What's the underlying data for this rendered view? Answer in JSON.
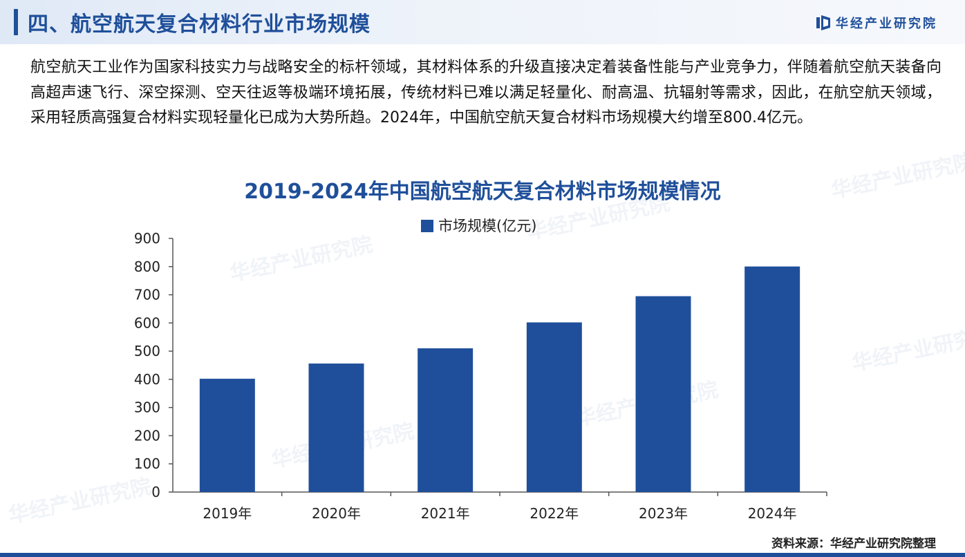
{
  "header": {
    "title": "四、航空航天复合材料行业市场规模",
    "brand": "华经产业研究院",
    "accent_color": "#1f4f9a"
  },
  "intro_text": "航空航天工业作为国家科技实力与战略安全的标杆领域，其材料体系的升级直接决定着装备性能与产业竞争力，伴随着航空航天装备向高超声速飞行、深空探测、空天往返等极端环境拓展，传统材料已难以满足轻量化、耐高温、抗辐射等需求，因此，在航空航天领域，采用轻质高强复合材料实现轻量化已成为大势所趋。2024年，中国航空航天复合材料市场规模大约增至800.4亿元。",
  "watermark_text": "华经产业研究院",
  "chart_data": {
    "type": "bar",
    "title": "2019-2024年中国航空航天复合材料市场规模情况",
    "categories": [
      "2019年",
      "2020年",
      "2021年",
      "2022年",
      "2023年",
      "2024年"
    ],
    "series": [
      {
        "name": "市场规模(亿元)",
        "values": [
          402,
          456,
          510,
          602,
          695,
          800.4
        ],
        "color": "#1f4f9a"
      }
    ],
    "ylim": [
      0,
      900
    ],
    "yticks": [
      0,
      100,
      200,
      300,
      400,
      500,
      600,
      700,
      800,
      900
    ],
    "grid": false,
    "legend_position": "top-center"
  },
  "footer": {
    "source": "资料来源：华经产业研究院整理"
  }
}
